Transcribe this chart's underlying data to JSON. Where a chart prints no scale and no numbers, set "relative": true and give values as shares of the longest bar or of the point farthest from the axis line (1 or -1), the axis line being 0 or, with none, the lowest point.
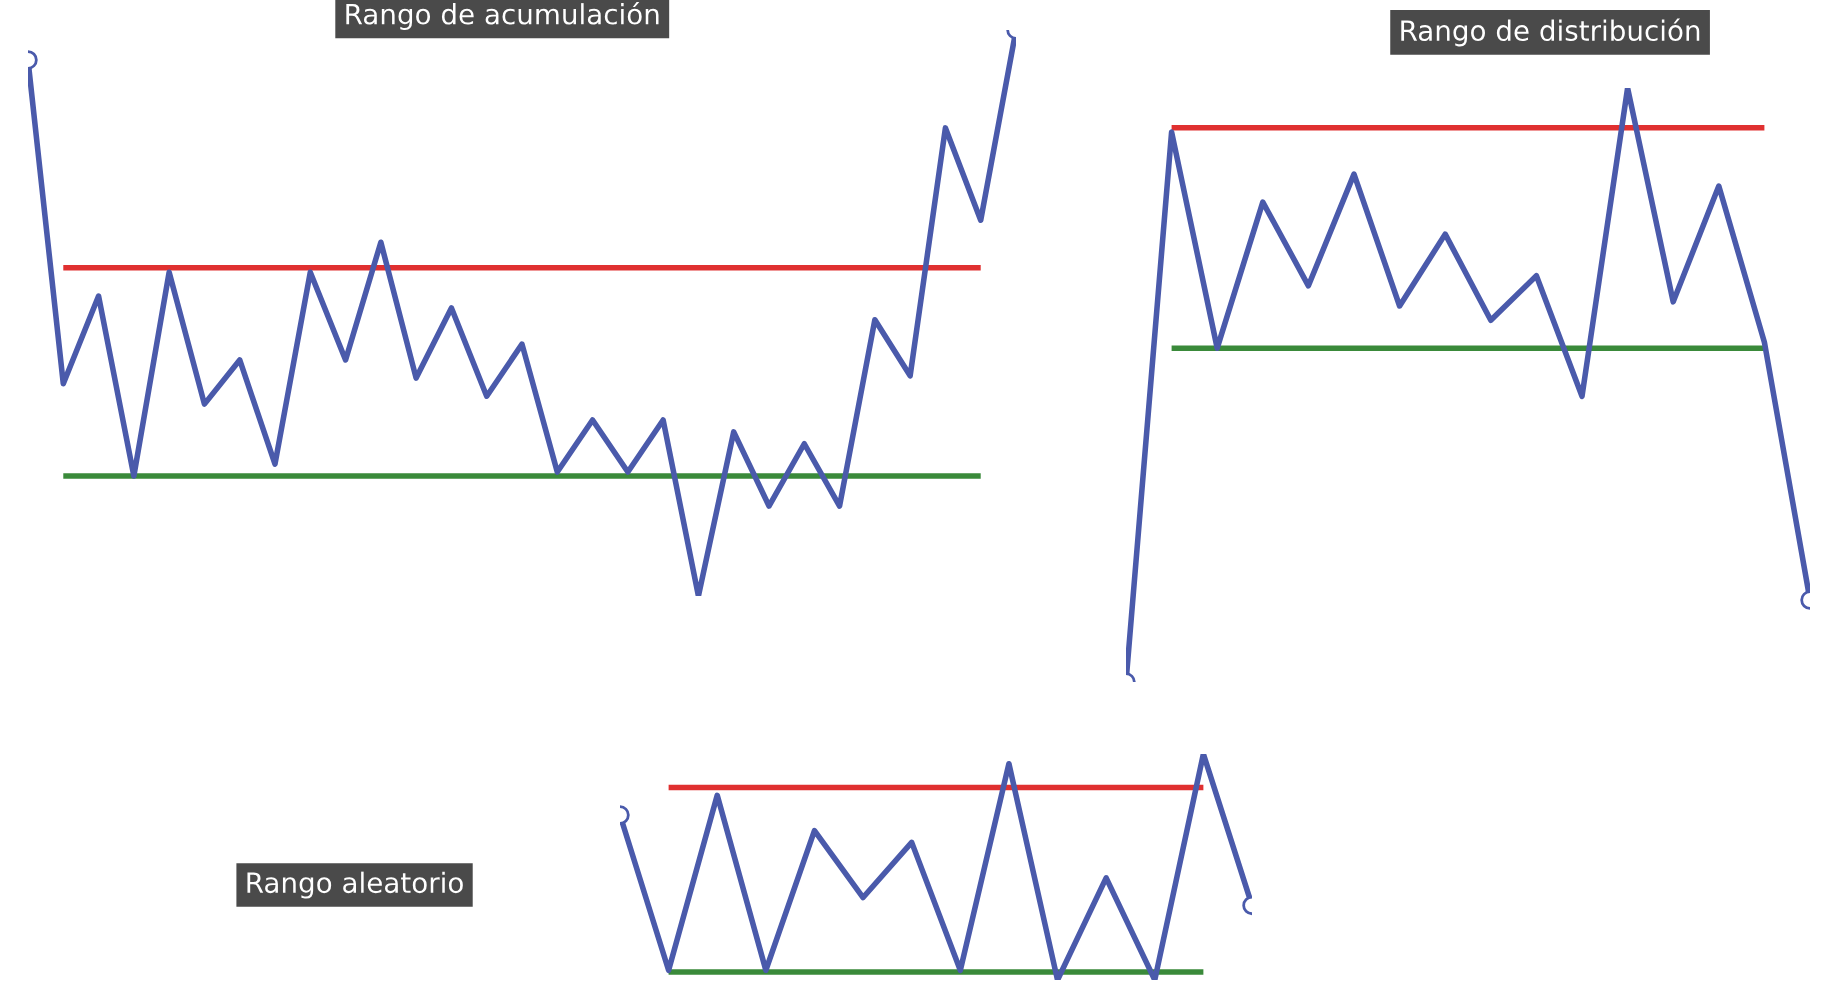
{
  "chart_data": [
    {
      "type": "line",
      "title": "Rango de acumulación",
      "relative": true,
      "categories": [
        null,
        null,
        null,
        null,
        null,
        null,
        null,
        null,
        null,
        null,
        null,
        null,
        null,
        null,
        null,
        null,
        null,
        null,
        null,
        null,
        null,
        null,
        null,
        null,
        null,
        null,
        null,
        null,
        null
      ],
      "series": [
        {
          "color": "#4a5aab",
          "values": [
            0.947,
            0.375,
            0.53,
            0.212,
            0.572,
            0.339,
            0.417,
            0.233,
            0.572,
            0.417,
            0.625,
            0.385,
            0.509,
            0.353,
            0.445,
            0.219,
            0.311,
            0.219,
            0.311,
            0,
            0.29,
            0.159,
            0.269,
            0.159,
            0.488,
            0.389,
            0.827,
            0.664,
            1
          ]
        }
      ],
      "ref_lines": [
        {
          "axis": "y",
          "value": 0.58,
          "color": "#e03030"
        },
        {
          "axis": "y",
          "value": 0.212,
          "color": "#3a8a3a"
        }
      ]
    },
    {
      "type": "line",
      "title": "Rango de distribución",
      "relative": true,
      "categories": [
        null,
        null,
        null,
        null,
        null,
        null,
        null,
        null,
        null,
        null,
        null,
        null,
        null,
        null,
        null,
        null
      ],
      "series": [
        {
          "color": "#4a5aab",
          "values": [
            0,
            0.926,
            0.562,
            0.808,
            0.667,
            0.855,
            0.633,
            0.754,
            0.609,
            0.684,
            0.481,
            1,
            0.64,
            0.835,
            0.572,
            0.138
          ]
        }
      ],
      "ref_lines": [
        {
          "axis": "y",
          "value": 0.933,
          "color": "#e03030"
        },
        {
          "axis": "y",
          "value": 0.562,
          "color": "#3a8a3a"
        }
      ]
    },
    {
      "type": "line",
      "title": "Rango aleatorio",
      "relative": true,
      "categories": [
        null,
        null,
        null,
        null,
        null,
        null,
        null,
        null,
        null,
        null,
        null,
        null,
        null,
        null
      ],
      "series": [
        {
          "color": "#4a5aab",
          "values": [
            0.73,
            0.043,
            0.817,
            0.043,
            0.661,
            0.365,
            0.609,
            0.043,
            0.957,
            0,
            0.452,
            0,
            1,
            0.33
          ]
        }
      ],
      "ref_lines": [
        {
          "axis": "y",
          "value": 0.852,
          "color": "#e03030"
        },
        {
          "axis": "y",
          "value": 0.035,
          "color": "#3a8a3a"
        }
      ]
    }
  ]
}
